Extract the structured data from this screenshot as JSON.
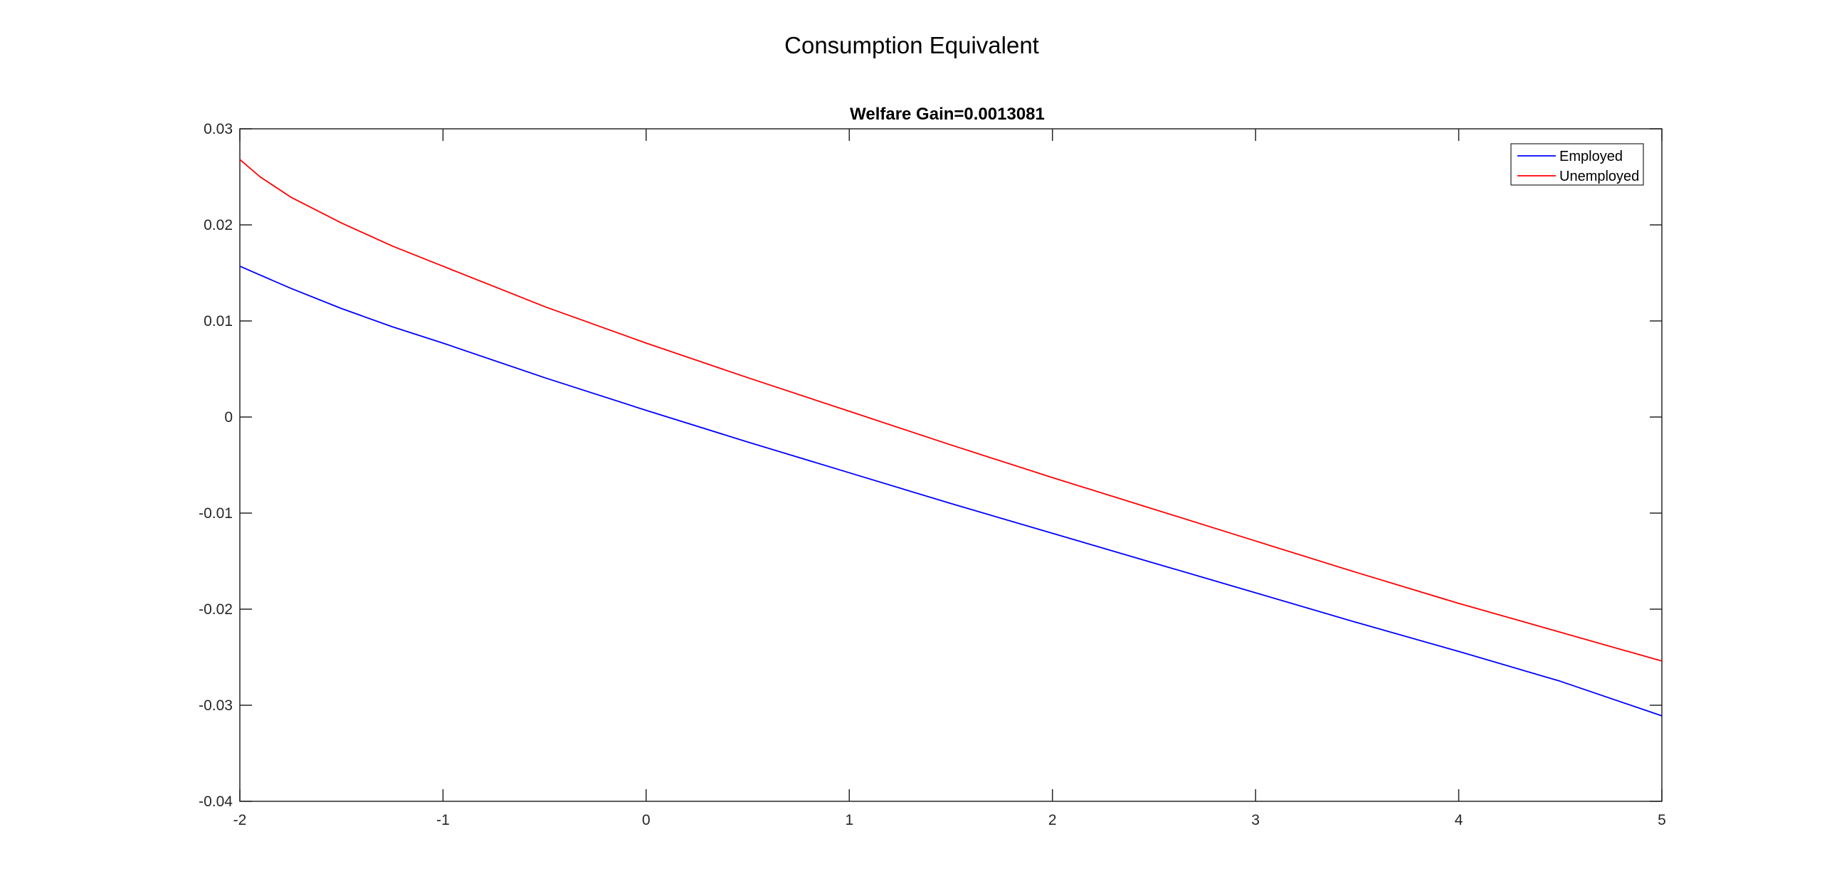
{
  "figure": {
    "suptitle": "Consumption Equivalent"
  },
  "chart_data": {
    "type": "line",
    "title": "Welfare Gain=0.0013081",
    "xlabel": "",
    "ylabel": "",
    "xlim": [
      -2,
      5
    ],
    "ylim": [
      -0.04,
      0.03
    ],
    "xticks": [
      -2,
      -1,
      0,
      1,
      2,
      3,
      4,
      5
    ],
    "xtick_labels": [
      "-2",
      "-1",
      "0",
      "1",
      "2",
      "3",
      "4",
      "5"
    ],
    "yticks": [
      -0.04,
      -0.03,
      -0.02,
      -0.01,
      0,
      0.01,
      0.02,
      0.03
    ],
    "ytick_labels": [
      "-0.04",
      "-0.03",
      "-0.02",
      "-0.01",
      "0",
      "0.01",
      "0.02",
      "0.03"
    ],
    "grid": false,
    "legend_position": "top-right",
    "series": [
      {
        "name": "Employed",
        "color": "#0000ff",
        "x": [
          -2,
          -1.75,
          -1.5,
          -1.25,
          -1,
          -0.5,
          0,
          0.5,
          1,
          1.5,
          2,
          2.5,
          3,
          3.5,
          4,
          4.5,
          5
        ],
        "y": [
          0.0157,
          0.0134,
          0.0113,
          0.0094,
          0.0077,
          0.0041,
          0.0007,
          -0.0026,
          -0.0058,
          -0.009,
          -0.0121,
          -0.0152,
          -0.0183,
          -0.0214,
          -0.0244,
          -0.0275,
          -0.0311
        ]
      },
      {
        "name": "Unemployed",
        "color": "#ff0000",
        "x": [
          -2,
          -1.9,
          -1.75,
          -1.5,
          -1.25,
          -1,
          -0.5,
          0,
          0.5,
          1,
          1.5,
          2,
          2.5,
          3,
          3.5,
          4,
          4.5,
          5
        ],
        "y": [
          0.0268,
          0.025,
          0.0229,
          0.0202,
          0.0178,
          0.0157,
          0.0115,
          0.0077,
          0.0041,
          0.0006,
          -0.0029,
          -0.0063,
          -0.0096,
          -0.0129,
          -0.0162,
          -0.0194,
          -0.0224,
          -0.0254
        ]
      }
    ]
  }
}
